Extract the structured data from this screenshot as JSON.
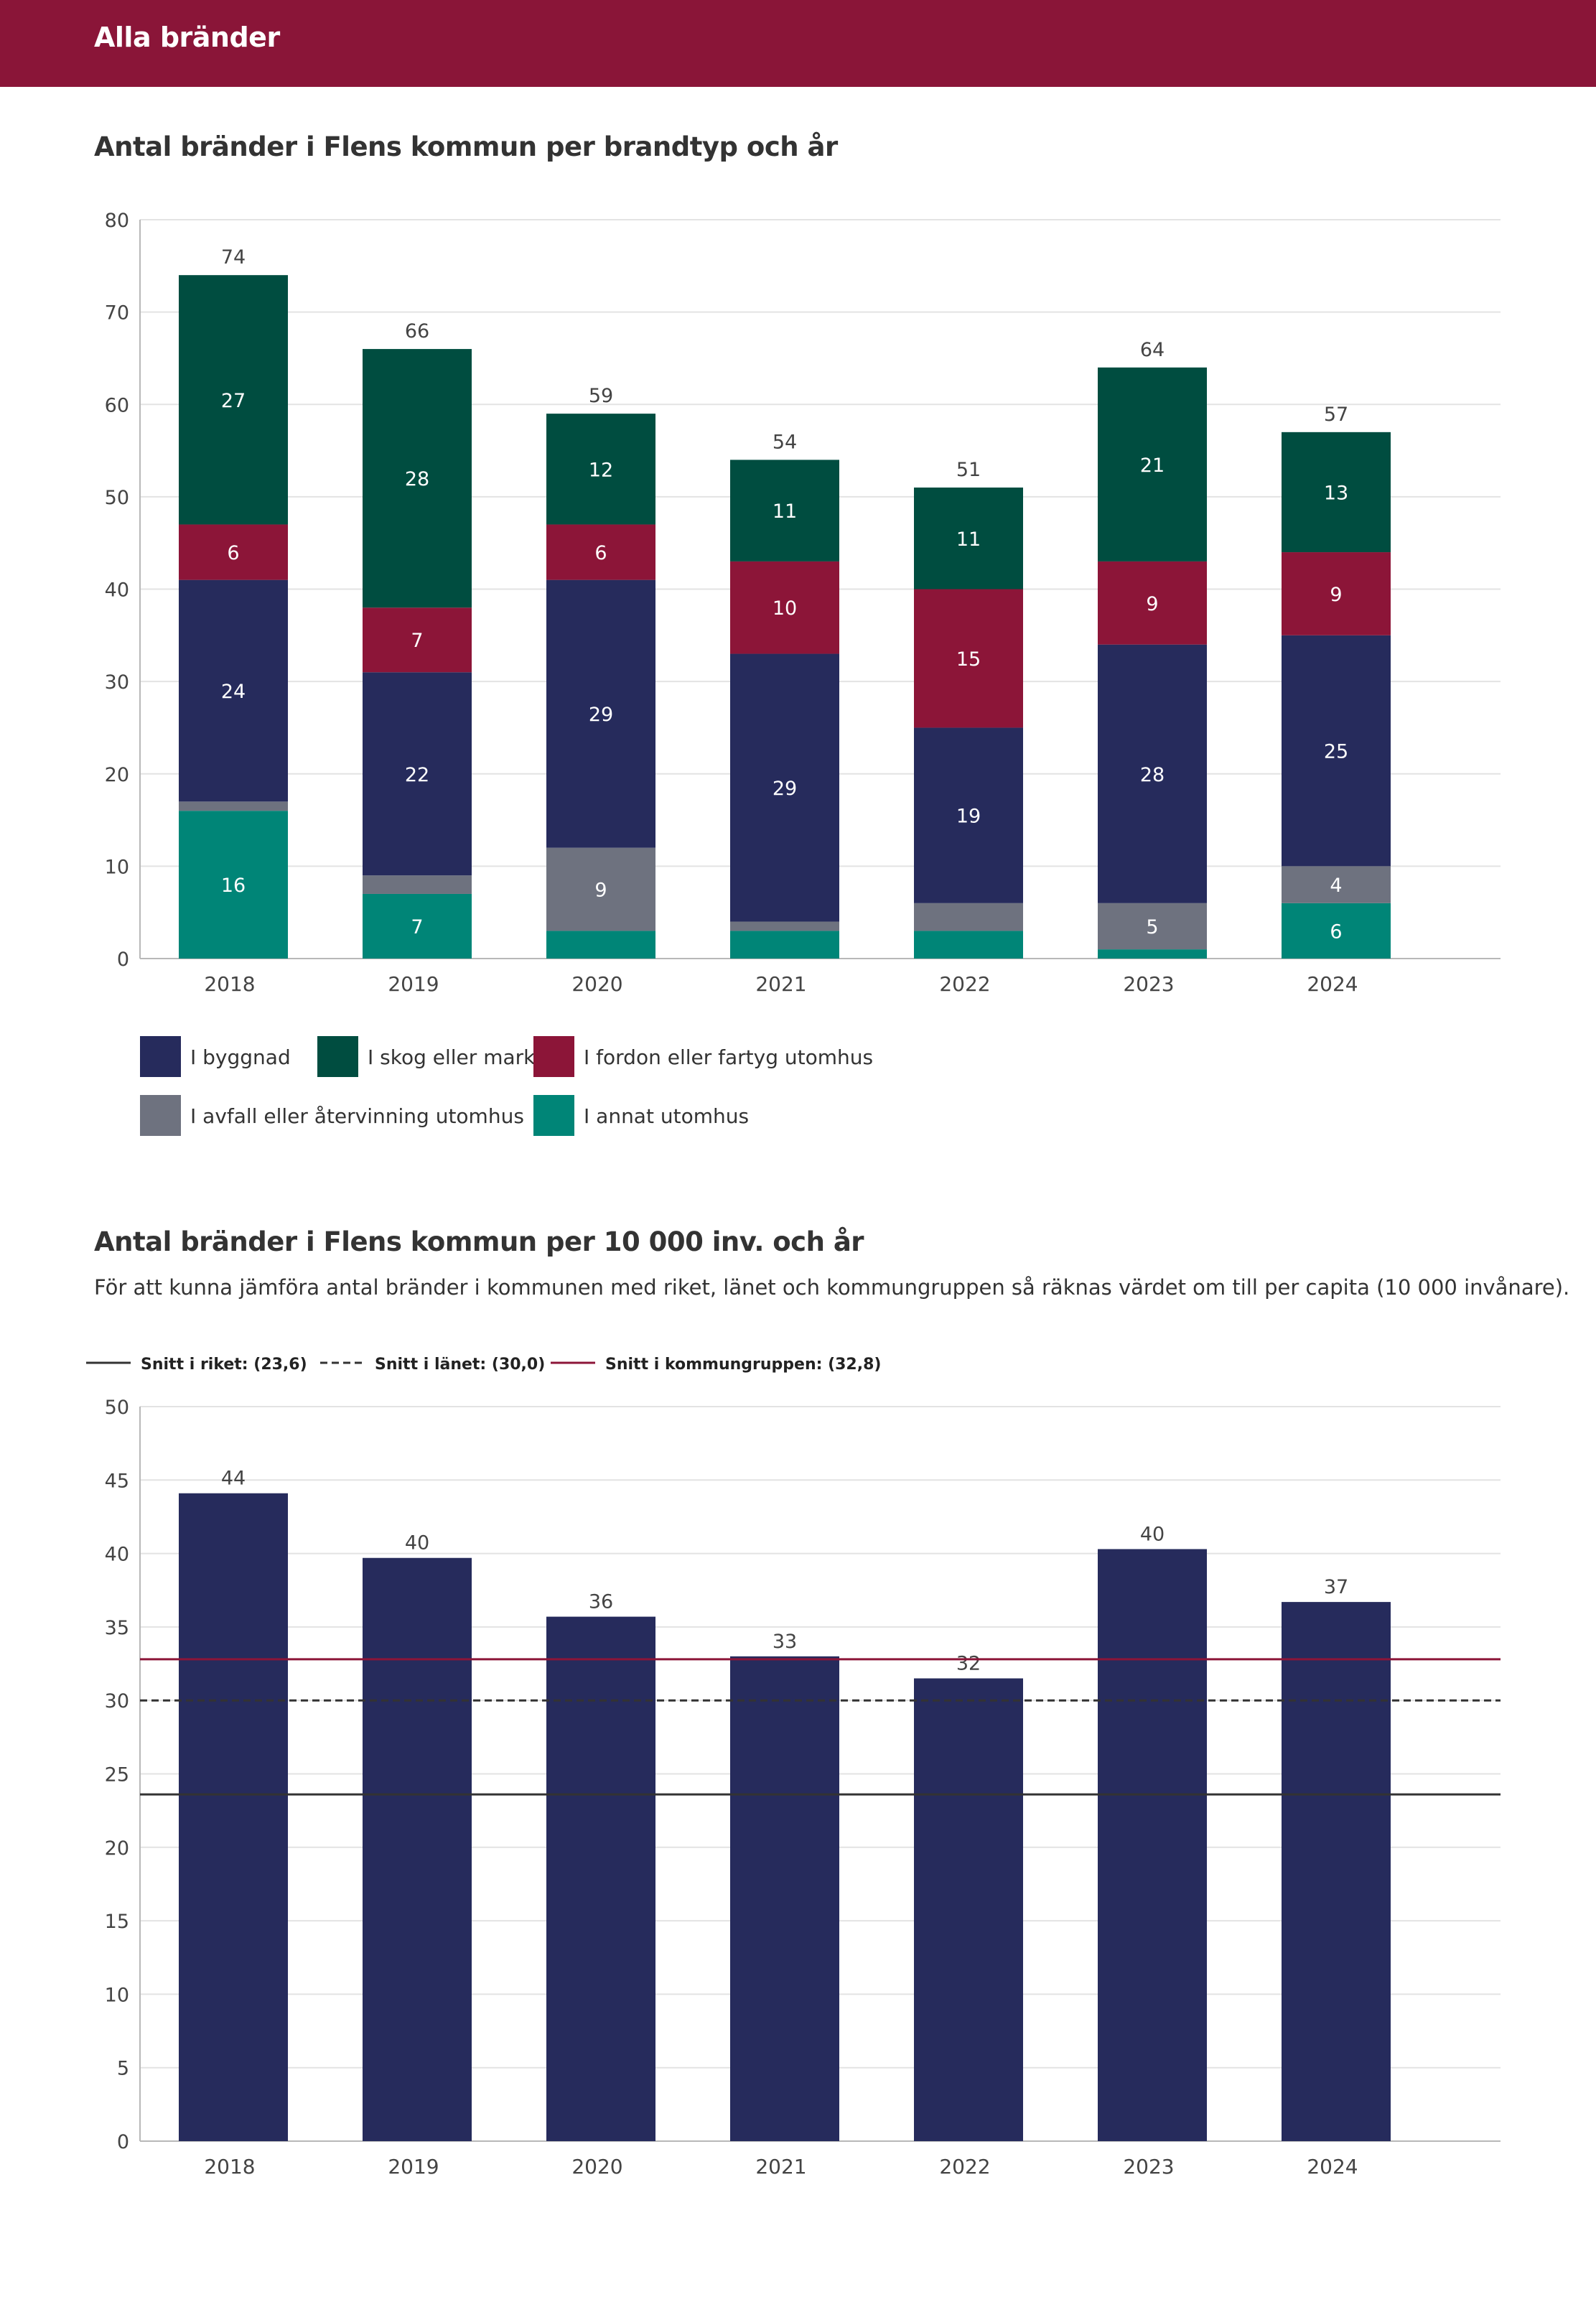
{
  "banner": {
    "title": "Alla bränder"
  },
  "chart1": {
    "heading": "Antal bränder i Flens kommun per brandtyp och år"
  },
  "chart2": {
    "heading": "Antal bränder i Flens kommun per 10 000 inv. och år",
    "description": "För att kunna jämföra antal bränder i kommunen med riket, länet och kommungruppen så räknas värdet om till per capita (10 000 invånare)."
  },
  "colors": {
    "banner": "#8a1538",
    "byggnad": "#262b5c",
    "skog": "#004d40",
    "fordon": "#8c1538",
    "avfall": "#6e727f",
    "annat": "#008577",
    "riket": "#333333",
    "lanet": "#333333",
    "kommungrupp": "#8c1538"
  },
  "chart_data": [
    {
      "type": "bar",
      "stacked": true,
      "title": "Antal bränder i Flens kommun per brandtyp och år",
      "categories": [
        "2018",
        "2019",
        "2020",
        "2021",
        "2022",
        "2023",
        "2024"
      ],
      "series": [
        {
          "key": "annat",
          "name": "I annat utomhus",
          "values": [
            16,
            7,
            3,
            3,
            3,
            1,
            6
          ],
          "labels": [
            "16",
            "7",
            "",
            "",
            "",
            "",
            "6"
          ]
        },
        {
          "key": "avfall",
          "name": "I avfall eller återvinning utomhus",
          "values": [
            1,
            2,
            9,
            1,
            3,
            5,
            4
          ],
          "labels": [
            "",
            "",
            "9",
            "",
            "",
            "5",
            "4"
          ]
        },
        {
          "key": "byggnad",
          "name": "I byggnad",
          "values": [
            24,
            22,
            29,
            29,
            19,
            28,
            25
          ],
          "labels": [
            "24",
            "22",
            "29",
            "29",
            "19",
            "28",
            "25"
          ]
        },
        {
          "key": "fordon",
          "name": "I fordon eller fartyg utomhus",
          "values": [
            6,
            7,
            6,
            10,
            15,
            9,
            9
          ],
          "labels": [
            "6",
            "7",
            "6",
            "10",
            "15",
            "9",
            "9"
          ]
        },
        {
          "key": "skog",
          "name": "I skog eller mark",
          "values": [
            27,
            28,
            12,
            11,
            11,
            21,
            13
          ],
          "labels": [
            "27",
            "28",
            "12",
            "11",
            "11",
            "21",
            "13"
          ]
        }
      ],
      "totals": [
        "74",
        "66",
        "59",
        "54",
        "51",
        "64",
        "57"
      ],
      "ylim": [
        0,
        80
      ],
      "yticks": [
        "0",
        "10",
        "20",
        "30",
        "40",
        "50",
        "60",
        "70",
        "80"
      ],
      "legend": [
        {
          "key": "byggnad",
          "label": "I byggnad"
        },
        {
          "key": "skog",
          "label": "I skog eller mark"
        },
        {
          "key": "fordon",
          "label": "I fordon eller fartyg utomhus"
        },
        {
          "key": "avfall",
          "label": "I avfall eller återvinning utomhus"
        },
        {
          "key": "annat",
          "label": "I annat utomhus"
        }
      ],
      "grid": true,
      "legend_position": "bottom"
    },
    {
      "type": "bar",
      "title": "Antal bränder i Flens kommun per 10 000 inv. och år",
      "categories": [
        "2018",
        "2019",
        "2020",
        "2021",
        "2022",
        "2023",
        "2024"
      ],
      "values": [
        44.1,
        39.7,
        35.7,
        33.0,
        31.5,
        40.3,
        36.7
      ],
      "labels": [
        "44",
        "40",
        "36",
        "33",
        "32",
        "40",
        "37"
      ],
      "ylim": [
        0,
        50
      ],
      "yticks": [
        "0",
        "5",
        "10",
        "15",
        "20",
        "25",
        "30",
        "35",
        "40",
        "45",
        "50"
      ],
      "reference_lines": [
        {
          "key": "riket",
          "label": "Snitt i riket: (23,6)",
          "value": 23.6,
          "style": "solid"
        },
        {
          "key": "lanet",
          "label": "Snitt i länet: (30,0)",
          "value": 30.0,
          "style": "dashed"
        },
        {
          "key": "kommungrupp",
          "label": "Snitt i kommungruppen: (32,8)",
          "value": 32.8,
          "style": "solid"
        }
      ],
      "grid": true,
      "legend_position": "top-left"
    }
  ]
}
